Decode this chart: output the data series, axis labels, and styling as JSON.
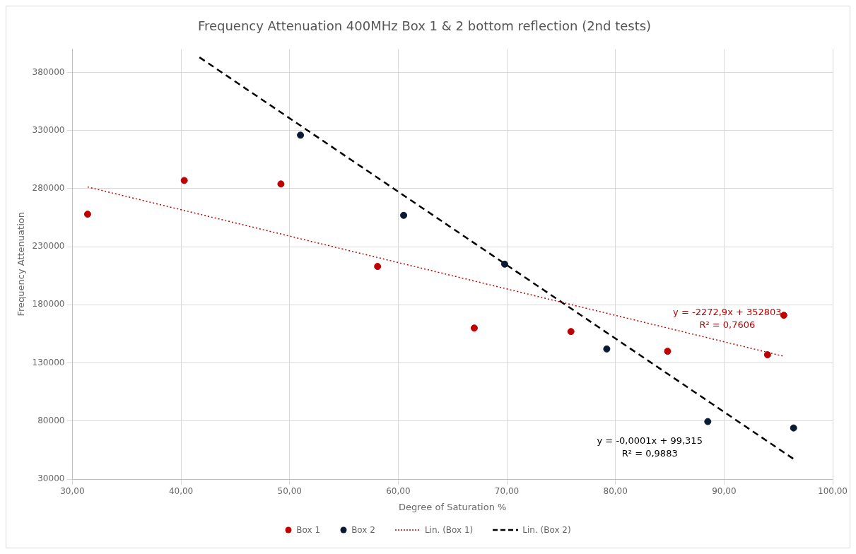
{
  "chart_data": {
    "type": "scatter",
    "title": "Frequency Attenuation 400MHz Box 1 & 2 bottom reflection (2nd tests)",
    "xlabel": "Degree of Saturation %",
    "ylabel": "Frequency Attenuation",
    "xlim": [
      30,
      100
    ],
    "xticks": [
      {
        "value": 30,
        "label": "30,00"
      },
      {
        "value": 40,
        "label": "40,00"
      },
      {
        "value": 50,
        "label": "50,00"
      },
      {
        "value": 60,
        "label": "60,00"
      },
      {
        "value": 70,
        "label": "70,00"
      },
      {
        "value": 80,
        "label": "80,00"
      },
      {
        "value": 90,
        "label": "90,00"
      },
      {
        "value": 100,
        "label": "100,00"
      }
    ],
    "ylim": [
      30000,
      400000
    ],
    "yticks": [
      30000,
      80000,
      130000,
      180000,
      230000,
      280000,
      330000,
      380000
    ],
    "grid": true,
    "legend": "bottom",
    "marker": "circle",
    "series": [
      {
        "name": "Box 1",
        "color": "#c00000",
        "x": [
          31.4,
          40.3,
          49.2,
          58.1,
          67.0,
          75.9,
          84.8,
          94.0,
          95.5
        ],
        "values": [
          258000,
          287000,
          284000,
          213000,
          160000,
          157000,
          140000,
          137000,
          171000
        ]
      },
      {
        "name": "Box 2",
        "color": "#0b1a33",
        "x": [
          51.0,
          60.5,
          69.8,
          79.2,
          88.5,
          96.4
        ],
        "values": [
          326000,
          257000,
          215000,
          142000,
          79500,
          74000
        ]
      },
      {
        "name": "Lin. (Box 1)",
        "type": "line",
        "color": "#c00000",
        "line_style": "dotted",
        "marker": "none",
        "x": [
          31.4,
          95.5
        ],
        "values": [
          281400,
          135700
        ]
      },
      {
        "name": "Lin. (Box 2)",
        "type": "line",
        "color": "#000000",
        "line_style": "dashed",
        "marker": "none",
        "x": [
          41.7,
          96.5
        ],
        "values": [
          393000,
          46700
        ]
      }
    ],
    "annotations": [
      "y = -2272,9x + 352803",
      "R² = 0,7606",
      "y = -0,0001x + 99,315",
      "R² = 0,9883"
    ]
  }
}
